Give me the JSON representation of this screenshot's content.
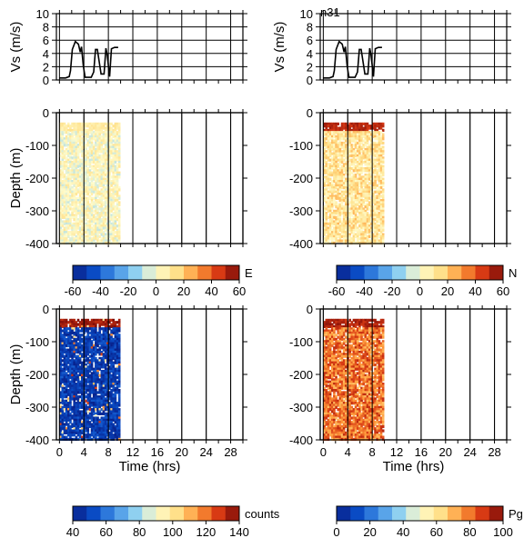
{
  "figure_label": "n31",
  "colorscale": [
    "#08208a",
    "#0a4bc4",
    "#3e8ee6",
    "#8fd0f0",
    "#fffccc",
    "#ffe08a",
    "#ff9a3a",
    "#d83a14",
    "#7a0a08"
  ],
  "chart_data": [
    {
      "panel": "vs-left",
      "type": "line",
      "ylabel": "Vs (m/s)",
      "ylim": [
        0,
        10
      ],
      "xlim": [
        -0.5,
        30
      ],
      "yticks": [
        "0",
        "2",
        "4",
        "6",
        "8",
        "10"
      ],
      "series": [
        {
          "x": [
            0,
            1,
            1.6,
            1.8,
            2.1,
            2.6,
            3.1,
            3.4,
            3.6,
            3.9,
            4.2,
            5.2,
            5.6,
            5.9,
            6.2,
            6.8,
            7.3,
            7.6,
            7.8,
            8.2,
            8.5,
            9,
            9.6
          ],
          "y": [
            0.3,
            0.3,
            0.5,
            1.4,
            4.6,
            5.8,
            5.4,
            4.2,
            5.0,
            2.1,
            0.4,
            0.4,
            1.2,
            4.6,
            4.6,
            0.9,
            0.9,
            4.8,
            3.8,
            0.5,
            4.7,
            4.9,
            4.9
          ]
        }
      ]
    },
    {
      "panel": "vs-right",
      "type": "line",
      "ylabel": "Vs (m/s)",
      "ylim": [
        0,
        10
      ],
      "xlim": [
        -0.5,
        30
      ],
      "yticks": [
        "0",
        "2",
        "4",
        "6",
        "8",
        "10"
      ],
      "series": [
        {
          "x": [
            0,
            1,
            1.6,
            1.8,
            2.1,
            2.6,
            3.1,
            3.4,
            3.6,
            3.9,
            4.2,
            5.2,
            5.6,
            5.9,
            6.2,
            6.8,
            7.3,
            7.6,
            7.8,
            8.2,
            8.5,
            9,
            9.6
          ],
          "y": [
            0.3,
            0.3,
            0.5,
            1.4,
            4.6,
            5.8,
            5.4,
            4.2,
            5.0,
            2.1,
            0.4,
            0.4,
            1.2,
            4.6,
            4.6,
            0.9,
            0.9,
            4.8,
            3.8,
            0.5,
            4.7,
            4.9,
            4.9
          ]
        }
      ]
    },
    {
      "panel": "E",
      "type": "heatmap",
      "ylabel": "Depth (m)",
      "ylim": [
        -400,
        0
      ],
      "xlim": [
        -0.5,
        30
      ],
      "data_x_end": 9.8,
      "data_depth_top": -30,
      "yticks": [
        "0",
        "-100",
        "-200",
        "-300",
        "-400"
      ],
      "colorbar": {
        "label": "E",
        "range": [
          -60,
          60
        ],
        "ticks": [
          "-60",
          "-40",
          "-20",
          "0",
          "20",
          "40",
          "60"
        ]
      },
      "value_center": 2,
      "value_spread": 10,
      "top_value": 14
    },
    {
      "panel": "N",
      "type": "heatmap",
      "ylim": [
        -400,
        0
      ],
      "xlim": [
        -0.5,
        30
      ],
      "data_x_end": 9.8,
      "data_depth_top": -30,
      "yticks": [
        "0",
        "-100",
        "-200",
        "-300",
        "-400"
      ],
      "colorbar": {
        "label": "N",
        "range": [
          -60,
          60
        ],
        "ticks": [
          "-60",
          "-40",
          "-20",
          "0",
          "20",
          "40",
          "60"
        ]
      },
      "value_center": 12,
      "value_spread": 12,
      "top_value": 55
    },
    {
      "panel": "counts",
      "type": "heatmap",
      "ylabel": "Depth (m)",
      "xlabel": "Time (hrs)",
      "ylim": [
        -400,
        0
      ],
      "xlim": [
        -0.5,
        30
      ],
      "data_x_end": 9.8,
      "data_depth_top": -30,
      "yticks": [
        "0",
        "-100",
        "-200",
        "-300",
        "-400"
      ],
      "xticks": [
        "0",
        "4",
        "8",
        "12",
        "16",
        "20",
        "24",
        "28"
      ],
      "colorbar": {
        "label": "counts",
        "range": [
          40,
          140
        ],
        "ticks": [
          "40",
          "60",
          "80",
          "100",
          "120",
          "140"
        ]
      },
      "value_center": 48,
      "value_spread": 8,
      "top_value": 140
    },
    {
      "panel": "Pg",
      "type": "heatmap",
      "xlabel": "Time (hrs)",
      "ylim": [
        -400,
        0
      ],
      "xlim": [
        -0.5,
        30
      ],
      "data_x_end": 9.8,
      "data_depth_top": -30,
      "yticks": [
        "0",
        "-100",
        "-200",
        "-300",
        "-400"
      ],
      "xticks": [
        "0",
        "4",
        "8",
        "12",
        "16",
        "20",
        "24",
        "28"
      ],
      "colorbar": {
        "label": "Pg",
        "range": [
          0,
          100
        ],
        "ticks": [
          "0",
          "20",
          "40",
          "60",
          "80",
          "100"
        ]
      },
      "value_center": 80,
      "value_spread": 12,
      "top_value": 98
    }
  ]
}
